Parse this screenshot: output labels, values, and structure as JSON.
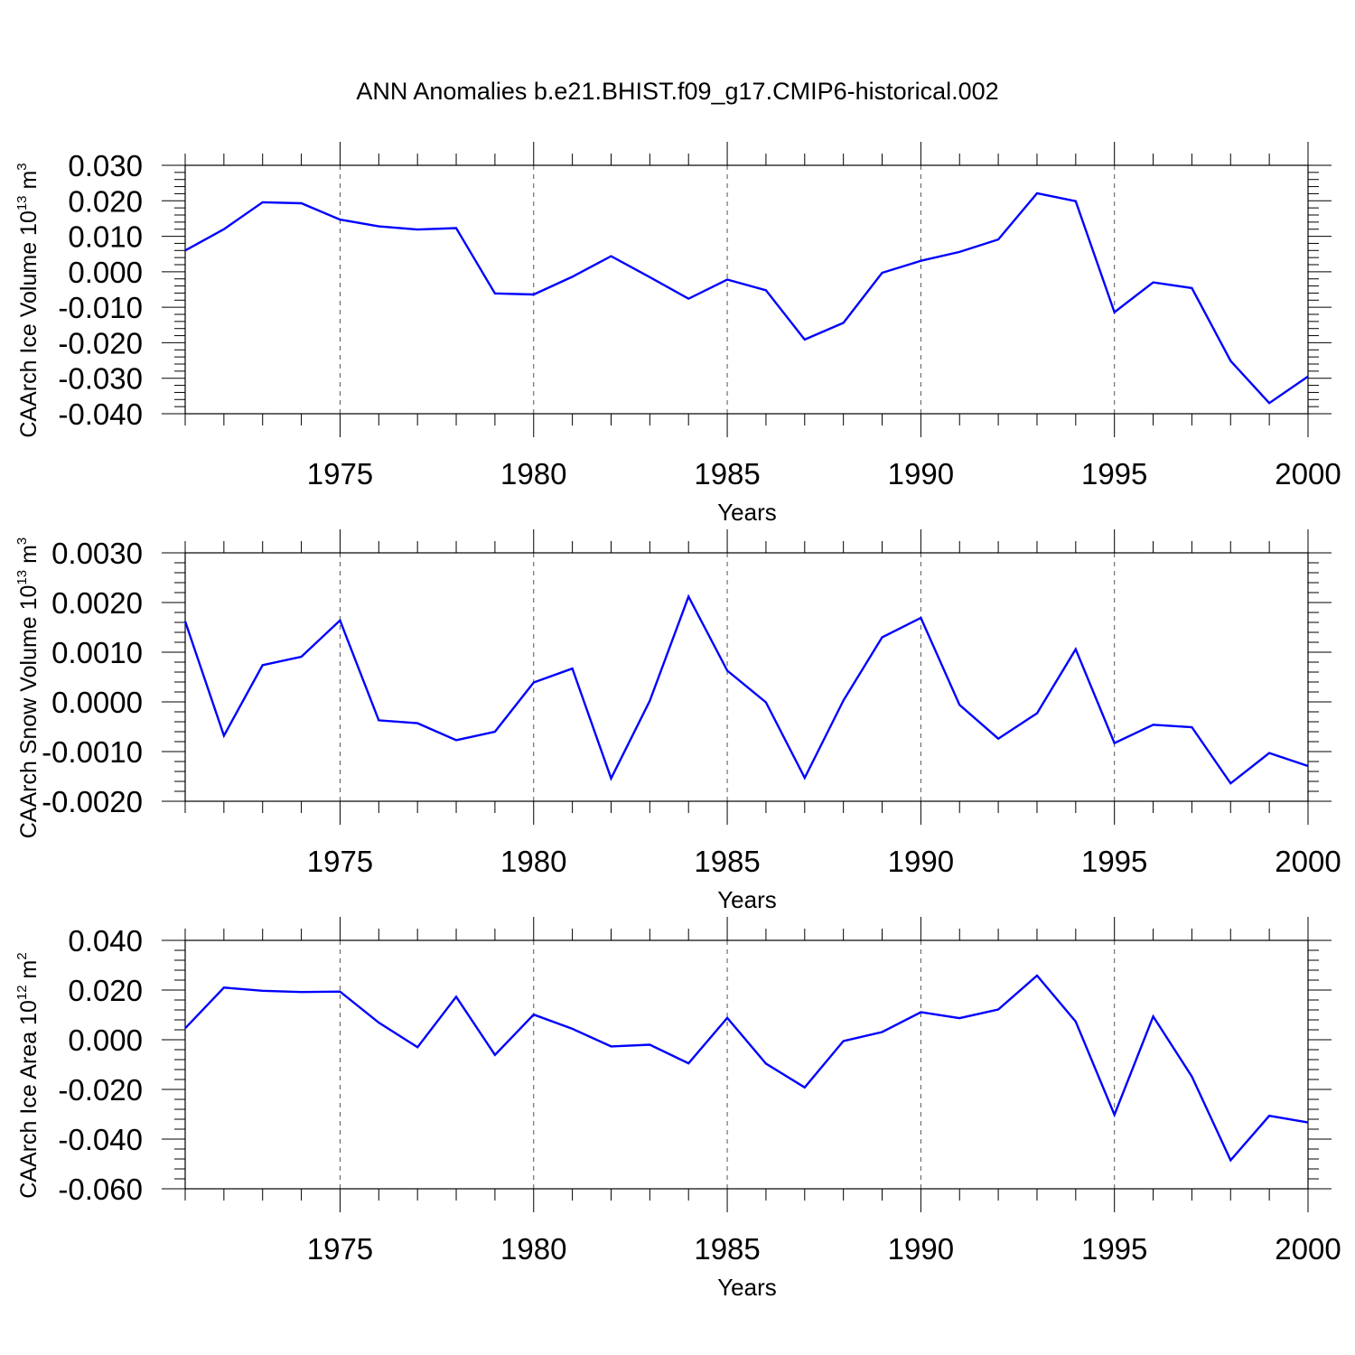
{
  "title": "ANN Anomalies b.e21.BHIST.f09_g17.CMIP6-historical.002",
  "colors": {
    "line": "#0000ff",
    "axis": "#000000",
    "grid": "#555555"
  },
  "chart_data": [
    {
      "type": "line",
      "xlabel": "Years",
      "ylabel": "CAArch Ice Volume 10",
      "ylabel_sup": "13",
      "ylabel_unit": " m",
      "ylabel_unit_sup": "3",
      "xlim": [
        1971,
        2000
      ],
      "ylim": [
        -0.04,
        0.03
      ],
      "x_ticks": [
        1975,
        1980,
        1985,
        1990,
        1995,
        2000
      ],
      "x_tick_labels": [
        "1975",
        "1980",
        "1985",
        "1990",
        "1995",
        "2000"
      ],
      "y_ticks": [
        0.03,
        0.02,
        0.01,
        0.0,
        -0.01,
        -0.02,
        -0.03,
        -0.04
      ],
      "y_tick_labels": [
        "0.030",
        "0.020",
        "0.010",
        "0.000",
        "-0.010",
        "-0.020",
        "-0.030",
        "-0.040"
      ],
      "x": [
        1971,
        1972,
        1973,
        1974,
        1975,
        1976,
        1977,
        1978,
        1979,
        1980,
        1981,
        1982,
        1983,
        1984,
        1985,
        1986,
        1987,
        1988,
        1989,
        1990,
        1991,
        1992,
        1993,
        1994,
        1995,
        1996,
        1997,
        1998,
        1999,
        2000
      ],
      "series": [
        {
          "values": [
            0.006,
            0.012,
            0.0196,
            0.0193,
            0.0147,
            0.0128,
            0.0119,
            0.0123,
            -0.0061,
            -0.0064,
            -0.0014,
            0.0044,
            -0.0015,
            -0.0076,
            -0.0022,
            -0.0052,
            -0.0191,
            -0.0144,
            -0.0003,
            0.0031,
            0.0056,
            0.0091,
            0.0221,
            0.0199,
            -0.0114,
            -0.003,
            -0.0046,
            -0.0251,
            -0.037,
            -0.0295
          ]
        }
      ]
    },
    {
      "type": "line",
      "xlabel": "Years",
      "ylabel": "CAArch Snow Volume 10",
      "ylabel_sup": "13",
      "ylabel_unit": " m",
      "ylabel_unit_sup": "3",
      "xlim": [
        1971,
        2000
      ],
      "ylim": [
        -0.002,
        0.003
      ],
      "x_ticks": [
        1975,
        1980,
        1985,
        1990,
        1995,
        2000
      ],
      "x_tick_labels": [
        "1975",
        "1980",
        "1985",
        "1990",
        "1995",
        "2000"
      ],
      "y_ticks": [
        0.003,
        0.002,
        0.001,
        0.0,
        -0.001,
        -0.002
      ],
      "y_tick_labels": [
        "0.0030",
        "0.0020",
        "0.0010",
        "0.0000",
        "-0.0010",
        "-0.0020"
      ],
      "x": [
        1971,
        1972,
        1973,
        1974,
        1975,
        1976,
        1977,
        1978,
        1979,
        1980,
        1981,
        1982,
        1983,
        1984,
        1985,
        1986,
        1987,
        1988,
        1989,
        1990,
        1991,
        1992,
        1993,
        1994,
        1995,
        1996,
        1997,
        1998,
        1999,
        2000
      ],
      "series": [
        {
          "values": [
            0.00162,
            -0.00068,
            0.00074,
            0.00091,
            0.00164,
            -0.00037,
            -0.00043,
            -0.00077,
            -0.0006,
            0.00039,
            0.00067,
            -0.00154,
            2e-05,
            0.00212,
            0.00063,
            -1e-05,
            -0.00153,
            3e-05,
            0.0013,
            0.00169,
            -6e-05,
            -0.00074,
            -0.00023,
            0.00106,
            -0.00083,
            -0.00046,
            -0.00051,
            -0.00164,
            -0.00103,
            -0.00129
          ]
        }
      ]
    },
    {
      "type": "line",
      "xlabel": "Years",
      "ylabel": "CAArch Ice Area 10",
      "ylabel_sup": "12",
      "ylabel_unit": " m",
      "ylabel_unit_sup": "2",
      "xlim": [
        1971,
        2000
      ],
      "ylim": [
        -0.06,
        0.04
      ],
      "x_ticks": [
        1975,
        1980,
        1985,
        1990,
        1995,
        2000
      ],
      "x_tick_labels": [
        "1975",
        "1980",
        "1985",
        "1990",
        "1995",
        "2000"
      ],
      "y_ticks": [
        0.04,
        0.02,
        0.0,
        -0.02,
        -0.04,
        -0.06
      ],
      "y_tick_labels": [
        "0.040",
        "0.020",
        "0.000",
        "-0.020",
        "-0.040",
        "-0.060"
      ],
      "x": [
        1971,
        1972,
        1973,
        1974,
        1975,
        1976,
        1977,
        1978,
        1979,
        1980,
        1981,
        1982,
        1983,
        1984,
        1985,
        1986,
        1987,
        1988,
        1989,
        1990,
        1991,
        1992,
        1993,
        1994,
        1995,
        1996,
        1997,
        1998,
        1999,
        2000
      ],
      "series": [
        {
          "values": [
            0.0046,
            0.021,
            0.0197,
            0.0192,
            0.0194,
            0.0069,
            -0.003,
            0.0173,
            -0.0061,
            0.0101,
            0.0044,
            -0.0027,
            -0.002,
            -0.0095,
            0.0088,
            -0.0096,
            -0.0192,
            -0.0005,
            0.0031,
            0.0111,
            0.0087,
            0.0122,
            0.0258,
            0.0073,
            -0.0302,
            0.0094,
            -0.0148,
            -0.0485,
            -0.0306,
            -0.0333
          ]
        }
      ]
    }
  ]
}
